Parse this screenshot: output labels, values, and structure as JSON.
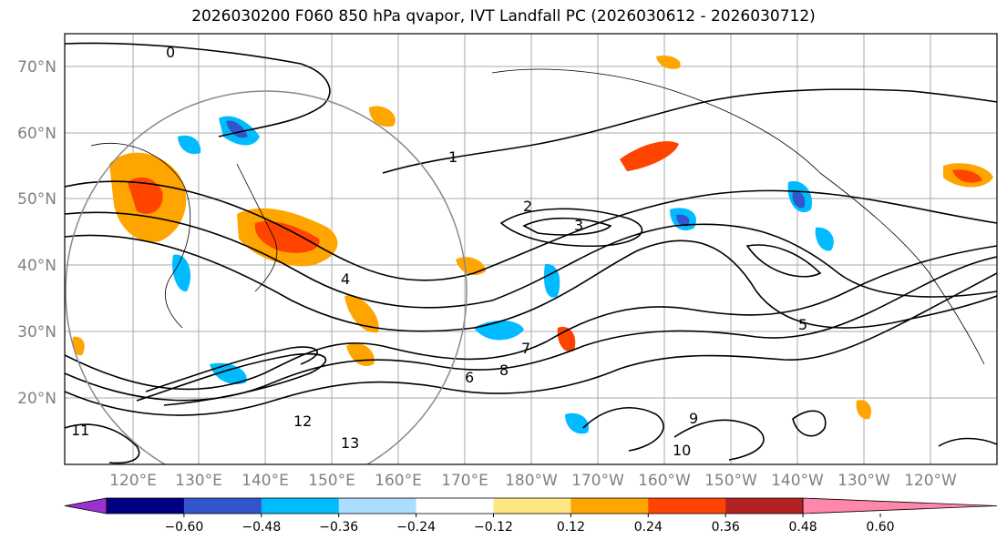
{
  "title": "2026030200 F060 850 hPa qvapor, IVT Landfall PC (2026030612 - 2026030712)",
  "map": {
    "lat_labels": [
      "70°N",
      "60°N",
      "50°N",
      "40°N",
      "30°N",
      "20°N"
    ],
    "lon_labels": [
      "120°E",
      "130°E",
      "140°E",
      "150°E",
      "160°E",
      "170°E",
      "180°W",
      "170°W",
      "160°W",
      "150°W",
      "140°W",
      "130°W",
      "120°W"
    ],
    "contour_labels": [
      "0",
      "1",
      "2",
      "3",
      "4",
      "5",
      "6",
      "7",
      "8",
      "9",
      "10",
      "11",
      "12",
      "13"
    ],
    "colors": {
      "label": "#808080",
      "grid": "#aaaaaa",
      "contour": "#000000"
    }
  },
  "colorbar": {
    "ticks": [
      "−0.60",
      "−0.48",
      "−0.36",
      "−0.24",
      "−0.12",
      "0.12",
      "0.24",
      "0.36",
      "0.48",
      "0.60"
    ],
    "colors": [
      "#9933cc",
      "#000080",
      "#3355cc",
      "#00bbff",
      "#aaddff",
      "#ffffff",
      "#ffe680",
      "#ffa500",
      "#ff4400",
      "#b22222",
      "#ff88aa"
    ]
  }
}
